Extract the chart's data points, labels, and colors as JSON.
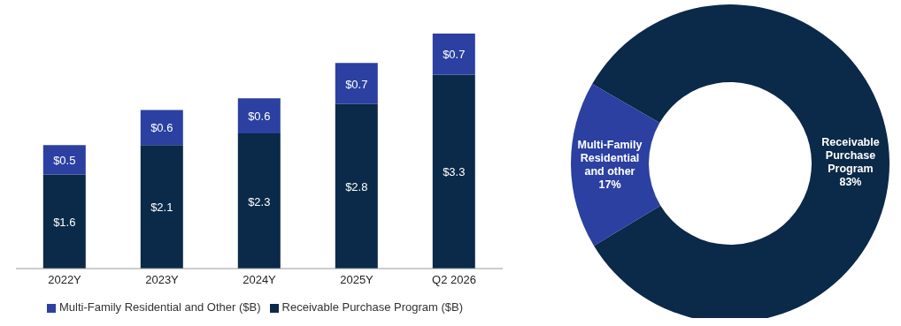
{
  "chart_data": [
    {
      "type": "bar",
      "stacked": true,
      "categories": [
        "2022Y",
        "2023Y",
        "2024Y",
        "2025Y",
        "Q2 2026"
      ],
      "legend": "bottom",
      "series": [
        {
          "name": "Receivable Purchase Program ($B)",
          "color": "#0b2948",
          "values": [
            1.6,
            2.1,
            2.3,
            2.8,
            3.3
          ],
          "value_labels": [
            "$1.6",
            "$2.1",
            "$2.3",
            "$2.8",
            "$3.3"
          ]
        },
        {
          "name": "Multi-Family Residential and Other ($B)",
          "color": "#2b40a0",
          "values": [
            0.5,
            0.6,
            0.6,
            0.7,
            0.7
          ],
          "value_labels": [
            "$0.5",
            "$0.6",
            "$0.6",
            "$0.7",
            "$0.7"
          ]
        }
      ]
    },
    {
      "type": "donut",
      "categories": [
        "Receivable Purchase Program",
        "Multi-Family Residential and other"
      ],
      "values": [
        83,
        17
      ],
      "colors": [
        "#0b2948",
        "#2b40a0"
      ],
      "value_labels": [
        "83%",
        "17%"
      ]
    }
  ]
}
